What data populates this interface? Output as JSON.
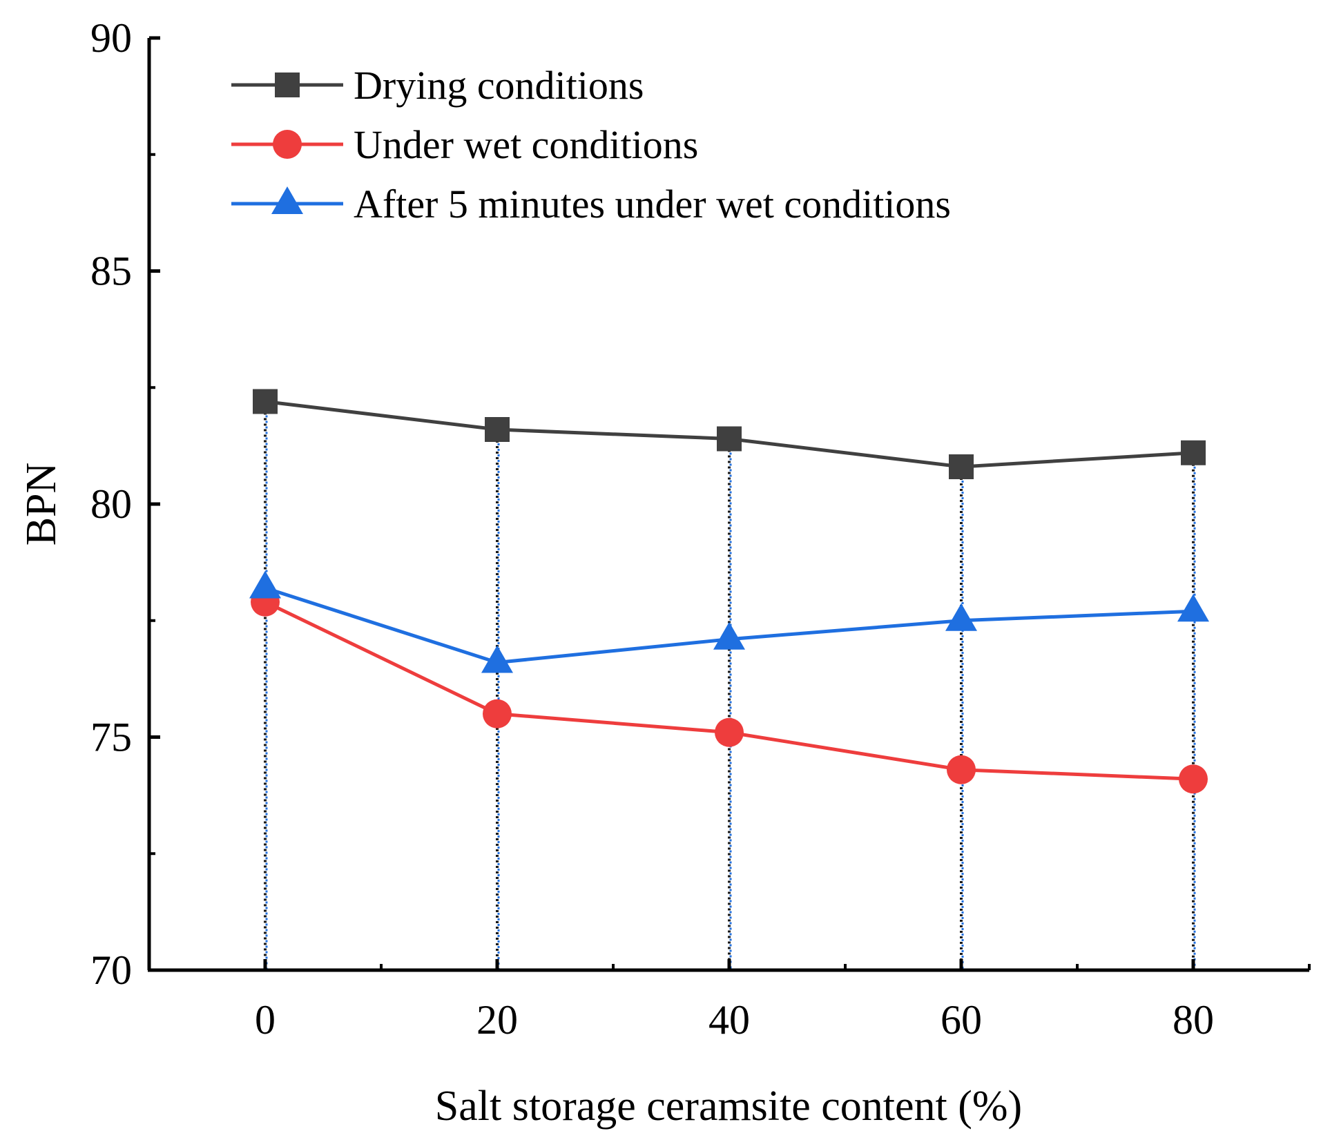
{
  "chart_data": {
    "type": "line",
    "title": "",
    "xlabel": "Salt storage ceramsite content (%)",
    "ylabel": "BPN",
    "x": [
      0,
      20,
      40,
      60,
      80
    ],
    "xlim": [
      -10,
      90
    ],
    "ylim": [
      70,
      90
    ],
    "xticks": [
      0,
      20,
      40,
      60,
      80
    ],
    "xtick_labels": [
      "0",
      "20",
      "40",
      "60",
      "80"
    ],
    "yticks": [
      70,
      75,
      80,
      85,
      90
    ],
    "ytick_labels": [
      "70",
      "75",
      "80",
      "85",
      "90"
    ],
    "grid": false,
    "legend_position": "top-left",
    "series": [
      {
        "name": "Drying conditions",
        "marker": "square",
        "color": "#404040",
        "values": [
          82.2,
          81.6,
          81.4,
          80.8,
          81.1
        ]
      },
      {
        "name": "Under wet conditions",
        "marker": "circle",
        "color": "#ee3d3d",
        "values": [
          77.9,
          75.5,
          75.1,
          74.3,
          74.1
        ]
      },
      {
        "name": "After 5 minutes under wet conditions",
        "marker": "triangle",
        "color": "#1f6fe0",
        "values": [
          78.2,
          76.6,
          77.1,
          77.5,
          77.7
        ]
      }
    ],
    "droplines": {
      "style": "dotted",
      "colors": [
        "#1a1a1a",
        "#1f6fe0"
      ]
    }
  }
}
